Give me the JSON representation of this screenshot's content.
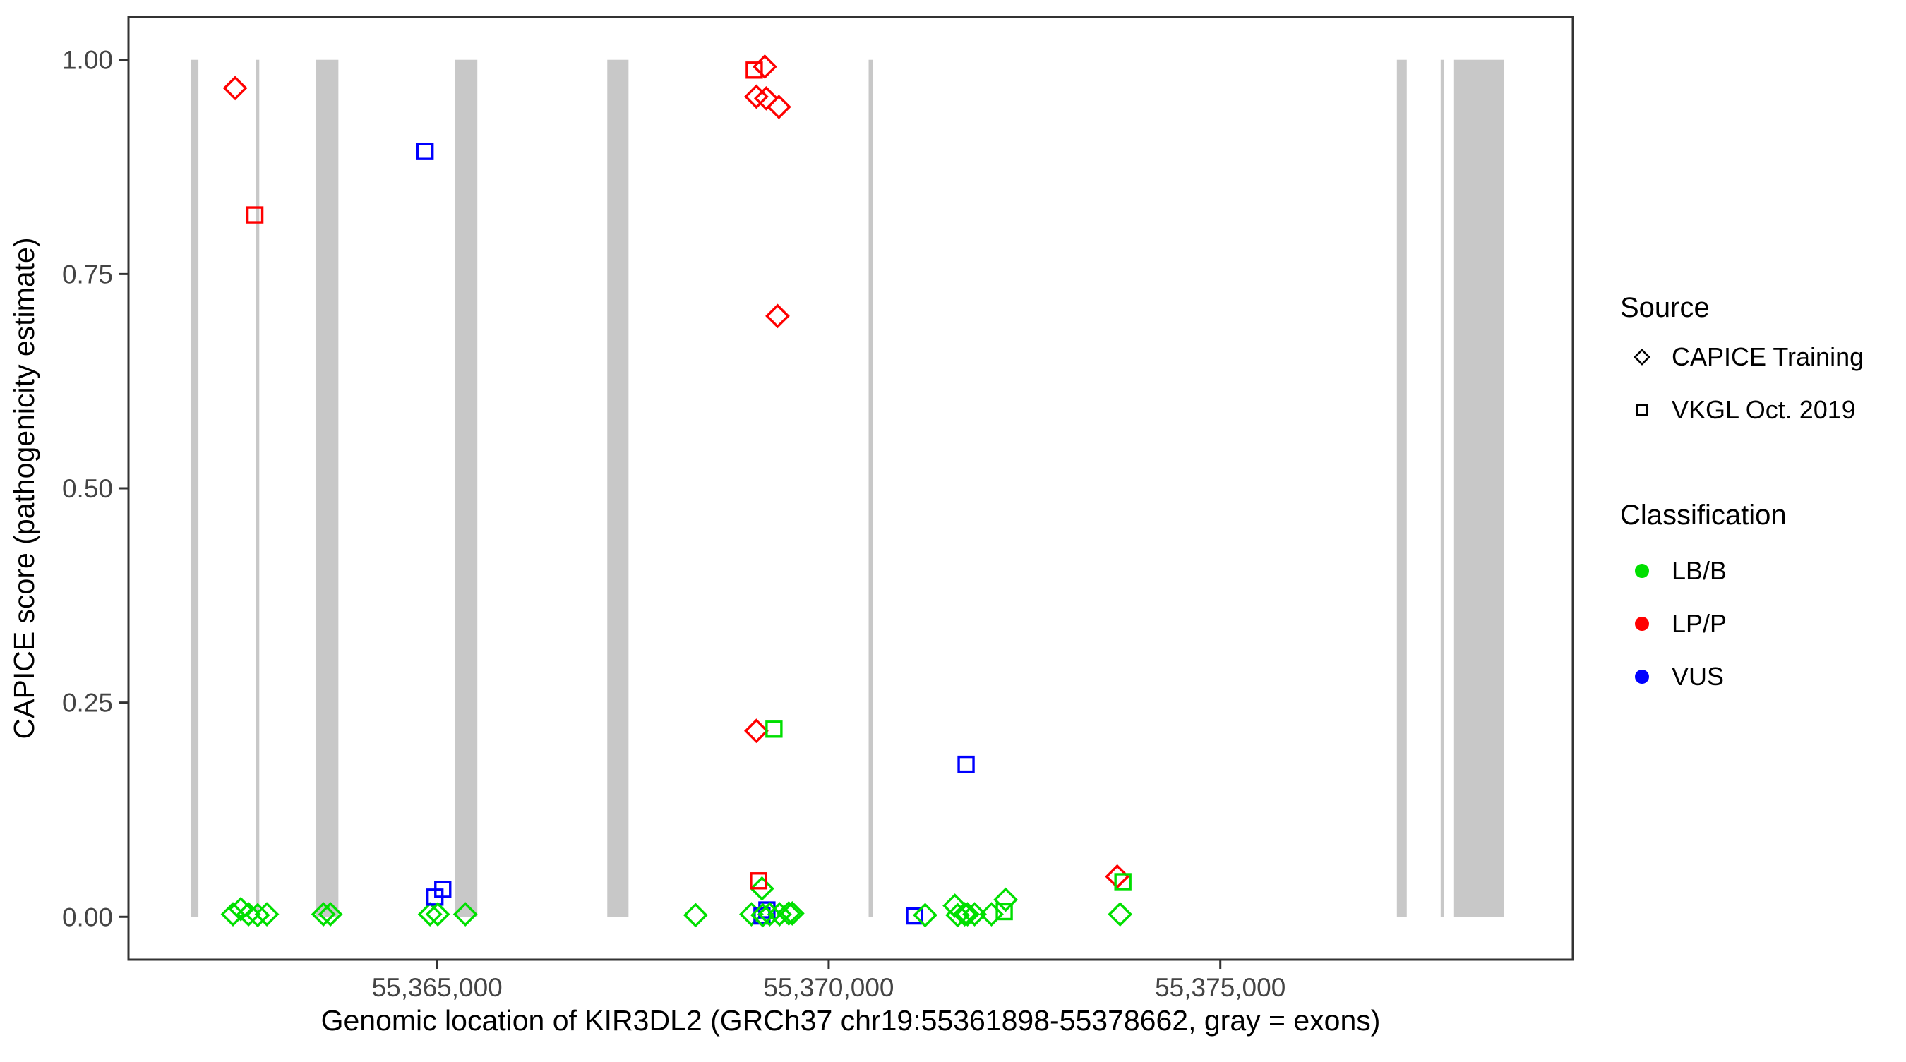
{
  "figure": {
    "background": "#FFFFFF",
    "panel_border_color": "#333333",
    "tick_color": "#333333",
    "tick_label_color": "#444444",
    "exon_color": "#C8C8C8"
  },
  "legend": {
    "source_title": "Source",
    "source_items": [
      {
        "label": "CAPICE Training",
        "shape": "diamond",
        "glyph_color": "#000000"
      },
      {
        "label": "VKGL Oct. 2019",
        "shape": "square",
        "glyph_color": "#000000"
      }
    ],
    "classification_title": "Classification",
    "classification_items": [
      {
        "label": "LB/B",
        "color": "#00DF00"
      },
      {
        "label": "LP/P",
        "color": "#FF0000"
      },
      {
        "label": "VUS",
        "color": "#0000FF"
      }
    ]
  },
  "chart_data": {
    "type": "scatter",
    "title": "",
    "xlabel": "Genomic location of KIR3DL2 (GRCh37 chr19:55361898-55378662, gray = exons)",
    "ylabel": "CAPICE score (pathogenicity estimate)",
    "x_domain": [
      55361060,
      55379500
    ],
    "y_domain": [
      -0.05,
      1.05
    ],
    "grid": "off",
    "legend_position": "right",
    "x_ticks": [
      {
        "value": 55365000,
        "label": "55,365,000"
      },
      {
        "value": 55370000,
        "label": "55,370,000"
      },
      {
        "value": 55375000,
        "label": "55,375,000"
      }
    ],
    "y_ticks": [
      {
        "value": 0.0,
        "label": "0.00"
      },
      {
        "value": 0.25,
        "label": "0.25"
      },
      {
        "value": 0.5,
        "label": "0.50"
      },
      {
        "value": 0.75,
        "label": "0.75"
      },
      {
        "value": 1.0,
        "label": "1.00"
      }
    ],
    "exons_note": "gray vertical bands spanning score 0 to 1",
    "exons": [
      {
        "start": 55361853,
        "end": 55361953
      },
      {
        "start": 55362690,
        "end": 55362730
      },
      {
        "start": 55363450,
        "end": 55363740
      },
      {
        "start": 55365226,
        "end": 55365514
      },
      {
        "start": 55367173,
        "end": 55367444
      },
      {
        "start": 55370510,
        "end": 55370564
      },
      {
        "start": 55377254,
        "end": 55377380
      },
      {
        "start": 55377813,
        "end": 55377858
      },
      {
        "start": 55377975,
        "end": 55378624
      }
    ],
    "shape_by_source": {
      "CAPICE Training": "diamond",
      "VKGL Oct. 2019": "square"
    },
    "color_by_classification": {
      "LB/B": "#00DF00",
      "LP/P": "#FF0000",
      "VUS": "#0000FF"
    },
    "points": [
      {
        "g": 55362422,
        "score": 0.967,
        "source": "CAPICE Training",
        "classification": "LP/P"
      },
      {
        "g": 55362394,
        "score": 0.003,
        "source": "CAPICE Training",
        "classification": "LB/B"
      },
      {
        "g": 55362494,
        "score": 0.009,
        "source": "CAPICE Training",
        "classification": "LB/B"
      },
      {
        "g": 55362593,
        "score": 0.003,
        "source": "CAPICE Training",
        "classification": "LB/B"
      },
      {
        "g": 55362674,
        "score": 0.819,
        "source": "VKGL Oct. 2019",
        "classification": "LP/P"
      },
      {
        "g": 55362710,
        "score": 0.002,
        "source": "CAPICE Training",
        "classification": "LB/B"
      },
      {
        "g": 55362827,
        "score": 0.003,
        "source": "CAPICE Training",
        "classification": "LB/B"
      },
      {
        "g": 55363549,
        "score": 0.003,
        "source": "CAPICE Training",
        "classification": "LB/B"
      },
      {
        "g": 55363639,
        "score": 0.003,
        "source": "CAPICE Training",
        "classification": "LB/B"
      },
      {
        "g": 55364847,
        "score": 0.893,
        "source": "VKGL Oct. 2019",
        "classification": "VUS"
      },
      {
        "g": 55364910,
        "score": 0.003,
        "source": "CAPICE Training",
        "classification": "LB/B"
      },
      {
        "g": 55364973,
        "score": 0.023,
        "source": "VKGL Oct. 2019",
        "classification": "VUS"
      },
      {
        "g": 55365009,
        "score": 0.003,
        "source": "CAPICE Training",
        "classification": "LB/B"
      },
      {
        "g": 55365073,
        "score": 0.032,
        "source": "VKGL Oct. 2019",
        "classification": "VUS"
      },
      {
        "g": 55365361,
        "score": 0.003,
        "source": "CAPICE Training",
        "classification": "LB/B"
      },
      {
        "g": 55368300,
        "score": 0.002,
        "source": "CAPICE Training",
        "classification": "LB/B"
      },
      {
        "g": 55369049,
        "score": 0.988,
        "source": "VKGL Oct. 2019",
        "classification": "LP/P"
      },
      {
        "g": 55369184,
        "score": 0.992,
        "source": "CAPICE Training",
        "classification": "LP/P"
      },
      {
        "g": 55369076,
        "score": 0.957,
        "source": "CAPICE Training",
        "classification": "LP/P"
      },
      {
        "g": 55369202,
        "score": 0.955,
        "source": "CAPICE Training",
        "classification": "LP/P"
      },
      {
        "g": 55369364,
        "score": 0.945,
        "source": "CAPICE Training",
        "classification": "LP/P"
      },
      {
        "g": 55369347,
        "score": 0.701,
        "source": "CAPICE Training",
        "classification": "LP/P"
      },
      {
        "g": 55369076,
        "score": 0.217,
        "source": "CAPICE Training",
        "classification": "LP/P"
      },
      {
        "g": 55369301,
        "score": 0.219,
        "source": "VKGL Oct. 2019",
        "classification": "LB/B"
      },
      {
        "g": 55369148,
        "score": 0.033,
        "source": "CAPICE Training",
        "classification": "LB/B"
      },
      {
        "g": 55369103,
        "score": 0.042,
        "source": "VKGL Oct. 2019",
        "classification": "LP/P"
      },
      {
        "g": 55369013,
        "score": 0.003,
        "source": "CAPICE Training",
        "classification": "LB/B"
      },
      {
        "g": 55369148,
        "score": 0.001,
        "source": "VKGL Oct. 2019",
        "classification": "VUS"
      },
      {
        "g": 55369211,
        "score": 0.008,
        "source": "VKGL Oct. 2019",
        "classification": "VUS"
      },
      {
        "g": 55369157,
        "score": 0.002,
        "source": "CAPICE Training",
        "classification": "LB/B"
      },
      {
        "g": 55369247,
        "score": 0.003,
        "source": "CAPICE Training",
        "classification": "LB/B"
      },
      {
        "g": 55369373,
        "score": 0.003,
        "source": "CAPICE Training",
        "classification": "LB/B"
      },
      {
        "g": 55369490,
        "score": 0.004,
        "source": "CAPICE Training",
        "classification": "LB/B"
      },
      {
        "g": 55369535,
        "score": 0.004,
        "source": "CAPICE Training",
        "classification": "LB/B"
      },
      {
        "g": 55371096,
        "score": 0.001,
        "source": "VKGL Oct. 2019",
        "classification": "VUS"
      },
      {
        "g": 55371231,
        "score": 0.002,
        "source": "CAPICE Training",
        "classification": "LB/B"
      },
      {
        "g": 55371610,
        "score": 0.013,
        "source": "CAPICE Training",
        "classification": "LB/B"
      },
      {
        "g": 55371646,
        "score": 0.002,
        "source": "CAPICE Training",
        "classification": "LB/B"
      },
      {
        "g": 55371736,
        "score": 0.003,
        "source": "CAPICE Training",
        "classification": "LB/B"
      },
      {
        "g": 55371772,
        "score": 0.003,
        "source": "CAPICE Training",
        "classification": "LB/B"
      },
      {
        "g": 55371862,
        "score": 0.003,
        "source": "CAPICE Training",
        "classification": "LB/B"
      },
      {
        "g": 55372078,
        "score": 0.003,
        "source": "CAPICE Training",
        "classification": "LB/B"
      },
      {
        "g": 55371754,
        "score": 0.178,
        "source": "VKGL Oct. 2019",
        "classification": "VUS"
      },
      {
        "g": 55372259,
        "score": 0.02,
        "source": "CAPICE Training",
        "classification": "LB/B"
      },
      {
        "g": 55372241,
        "score": 0.006,
        "source": "VKGL Oct. 2019",
        "classification": "LB/B"
      },
      {
        "g": 55373684,
        "score": 0.047,
        "source": "CAPICE Training",
        "classification": "LP/P"
      },
      {
        "g": 55373756,
        "score": 0.041,
        "source": "VKGL Oct. 2019",
        "classification": "LB/B"
      },
      {
        "g": 55373720,
        "score": 0.003,
        "source": "CAPICE Training",
        "classification": "LB/B"
      }
    ]
  }
}
